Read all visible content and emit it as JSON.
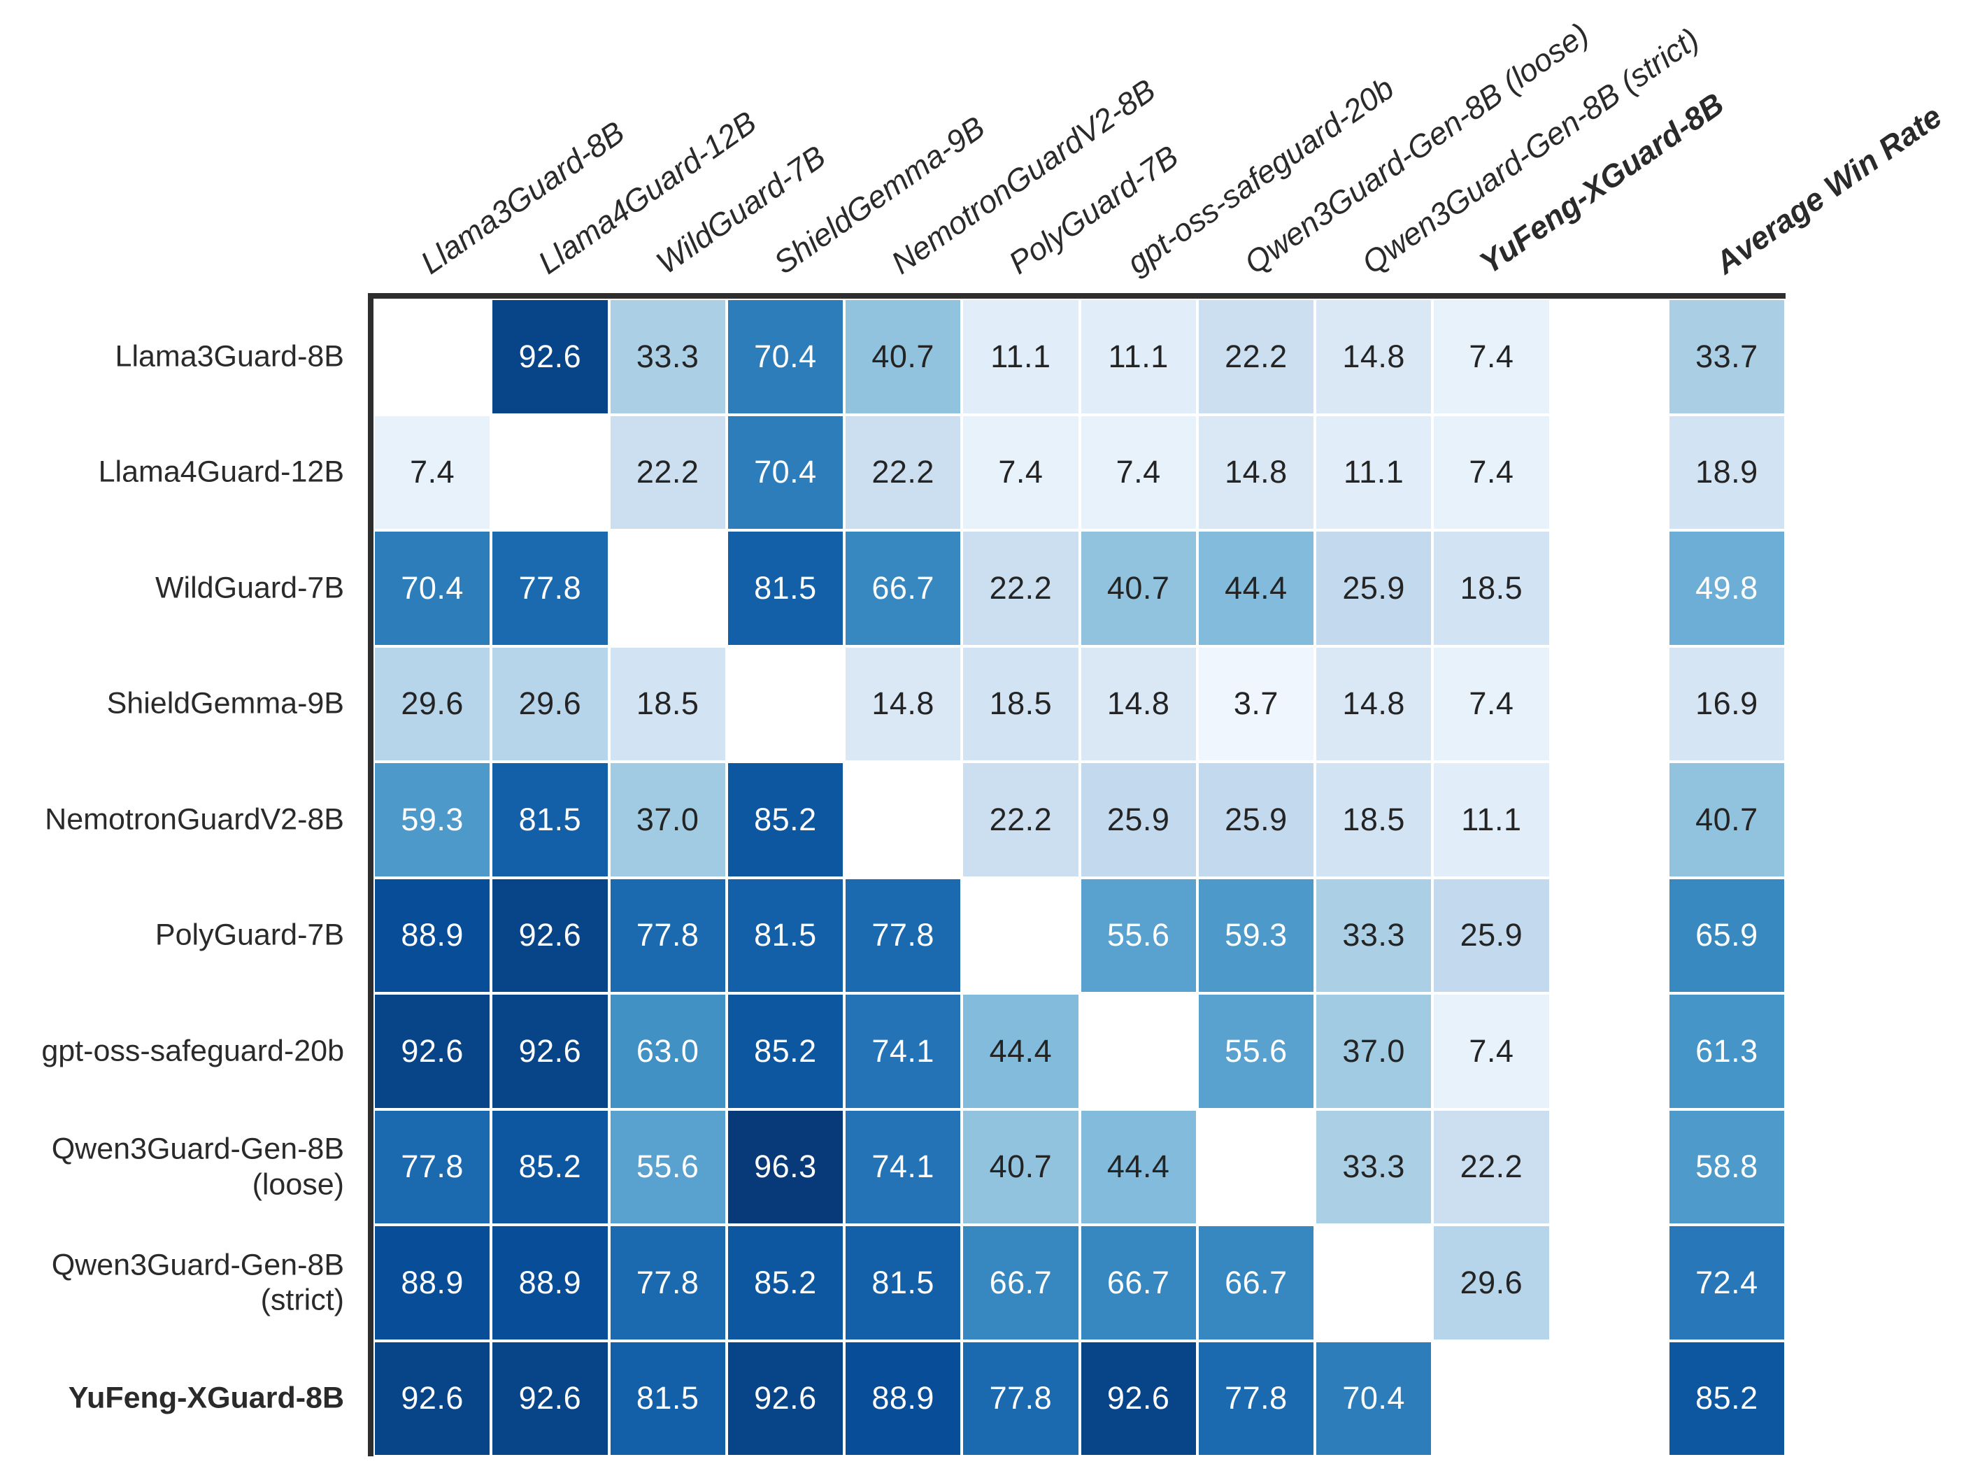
{
  "chart_data": {
    "type": "heatmap",
    "description": "Pairwise win-rate matrix between guard models with an Average Win Rate summary column",
    "colormap": "Blues",
    "vmin": 0,
    "vmax": 100,
    "grid": true,
    "diagonal": "blank",
    "rows": [
      {
        "label": "Llama3Guard-8B",
        "bold": false
      },
      {
        "label": "Llama4Guard-12B",
        "bold": false
      },
      {
        "label": "WildGuard-7B",
        "bold": false
      },
      {
        "label": "ShieldGemma-9B",
        "bold": false
      },
      {
        "label": "NemotronGuardV2-8B",
        "bold": false
      },
      {
        "label": "PolyGuard-7B",
        "bold": false
      },
      {
        "label": "gpt-oss-safeguard-20b",
        "bold": false
      },
      {
        "label": "Qwen3Guard-Gen-8B\n(loose)",
        "bold": false
      },
      {
        "label": "Qwen3Guard-Gen-8B\n(strict)",
        "bold": false
      },
      {
        "label": "YuFeng-XGuard-8B",
        "bold": true
      }
    ],
    "columns": [
      {
        "label": "Llama3Guard-8B",
        "bold": false
      },
      {
        "label": "Llama4Guard-12B",
        "bold": false
      },
      {
        "label": "WildGuard-7B",
        "bold": false
      },
      {
        "label": "ShieldGemma-9B",
        "bold": false
      },
      {
        "label": "NemotronGuardV2-8B",
        "bold": false
      },
      {
        "label": "PolyGuard-7B",
        "bold": false
      },
      {
        "label": "gpt-oss-safeguard-20b",
        "bold": false
      },
      {
        "label": "Qwen3Guard-Gen-8B (loose)",
        "bold": false
      },
      {
        "label": "Qwen3Guard-Gen-8B (strict)",
        "bold": false
      },
      {
        "label": "YuFeng-XGuard-8B",
        "bold": true
      }
    ],
    "average_column_label": "Average Win Rate",
    "matrix": [
      [
        null,
        92.6,
        33.3,
        70.4,
        40.7,
        11.1,
        11.1,
        22.2,
        14.8,
        7.4
      ],
      [
        7.4,
        null,
        22.2,
        70.4,
        22.2,
        7.4,
        7.4,
        14.8,
        11.1,
        7.4
      ],
      [
        70.4,
        77.8,
        null,
        81.5,
        66.7,
        22.2,
        40.7,
        44.4,
        25.9,
        18.5
      ],
      [
        29.6,
        29.6,
        18.5,
        null,
        14.8,
        18.5,
        14.8,
        3.7,
        14.8,
        7.4
      ],
      [
        59.3,
        81.5,
        37.0,
        85.2,
        null,
        22.2,
        25.9,
        25.9,
        18.5,
        11.1
      ],
      [
        88.9,
        92.6,
        77.8,
        81.5,
        77.8,
        null,
        55.6,
        59.3,
        33.3,
        25.9
      ],
      [
        92.6,
        92.6,
        63.0,
        85.2,
        74.1,
        44.4,
        null,
        55.6,
        37.0,
        7.4
      ],
      [
        77.8,
        85.2,
        55.6,
        96.3,
        74.1,
        40.7,
        44.4,
        null,
        33.3,
        22.2
      ],
      [
        88.9,
        88.9,
        77.8,
        85.2,
        81.5,
        66.7,
        66.7,
        66.7,
        null,
        29.6
      ],
      [
        92.6,
        92.6,
        81.5,
        92.6,
        88.9,
        77.8,
        92.6,
        77.8,
        70.4,
        null
      ]
    ],
    "averages": [
      33.7,
      18.9,
      49.8,
      16.9,
      40.7,
      65.9,
      61.3,
      58.8,
      72.4,
      85.2
    ],
    "colors": {
      "axis_border": "#2e2e2e",
      "dark_text": "#242424",
      "light_text": "#ffffff",
      "background": "#ffffff"
    },
    "text_white_threshold": 47
  }
}
